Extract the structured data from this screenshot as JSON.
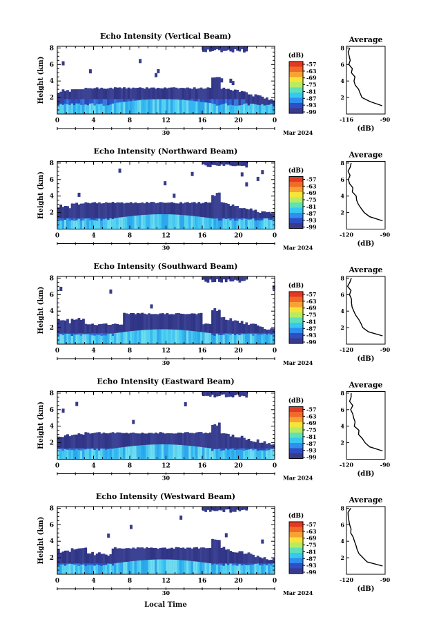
{
  "chart_data": {
    "type": "heatmap",
    "shared": {
      "xlabel": "Local Time",
      "ylabel": "Height (km)",
      "x_ticks": [
        "0",
        "4",
        "8",
        "12",
        "16",
        "20",
        "0"
      ],
      "date_labels": [
        "30",
        "Mar 2024"
      ],
      "y_ticks": [
        "2",
        "4",
        "6",
        "8"
      ],
      "colorbar_unit": "(dB)",
      "colorbar_ticks": [
        "-57",
        "-63",
        "-69",
        "-75",
        "-81",
        "-87",
        "-93",
        "-99"
      ],
      "colorbar_colors": [
        "#3a3a8c",
        "#2e4fc4",
        "#2f8ef0",
        "#37c8f0",
        "#5ee0b8",
        "#b8ec60",
        "#f6e43a",
        "#f8a233",
        "#f06a2a",
        "#e03a22"
      ],
      "avg_title": "Average",
      "avg_xlabel": "(dB)",
      "avg_y_ticks": [
        "2",
        "4",
        "6",
        "8"
      ]
    },
    "panels": [
      {
        "title": "Echo Intensity (Vertical Beam)",
        "avg_x_ticks": [
          "-116",
          "-90"
        ],
        "avg_xlim": [
          -116,
          -90
        ],
        "avg_profile": [
          [
            1,
            -92
          ],
          [
            1.5,
            -100
          ],
          [
            2,
            -105
          ],
          [
            2.5,
            -107
          ],
          [
            3,
            -108
          ],
          [
            3.5,
            -110
          ],
          [
            4,
            -110
          ],
          [
            4.5,
            -111
          ],
          [
            5,
            -113
          ],
          [
            5.5,
            -113
          ],
          [
            6,
            -114
          ],
          [
            6.5,
            -114
          ],
          [
            7,
            -115
          ],
          [
            7.5,
            -115
          ],
          [
            8,
            -114
          ]
        ]
      },
      {
        "title": "Echo Intensity (Northward Beam)",
        "avg_x_ticks": [
          "-120",
          "-90"
        ],
        "avg_xlim": [
          -120,
          -90
        ],
        "avg_profile": [
          [
            1,
            -92
          ],
          [
            1.5,
            -102
          ],
          [
            2,
            -106
          ],
          [
            2.5,
            -108
          ],
          [
            3,
            -110
          ],
          [
            3.5,
            -112
          ],
          [
            4,
            -113
          ],
          [
            4.5,
            -115
          ],
          [
            5,
            -116
          ],
          [
            5.5,
            -117
          ],
          [
            6,
            -118
          ],
          [
            6.5,
            -118
          ],
          [
            7,
            -119
          ],
          [
            7.5,
            -118
          ],
          [
            8,
            -117
          ]
        ]
      },
      {
        "title": "Echo Intensity (Southward Beam)",
        "avg_x_ticks": [
          "-120",
          "-90"
        ],
        "avg_xlim": [
          -120,
          -90
        ],
        "avg_profile": [
          [
            1,
            -92
          ],
          [
            1.5,
            -103
          ],
          [
            2,
            -107
          ],
          [
            2.5,
            -109
          ],
          [
            3,
            -111
          ],
          [
            3.5,
            -112
          ],
          [
            4,
            -114
          ],
          [
            4.5,
            -115
          ],
          [
            5,
            -116
          ],
          [
            5.5,
            -117
          ],
          [
            6,
            -118
          ],
          [
            6.5,
            -117
          ],
          [
            7,
            -119
          ],
          [
            7.5,
            -118
          ],
          [
            8,
            -117
          ]
        ]
      },
      {
        "title": "Echo Intensity (Eastward Beam)",
        "avg_x_ticks": [
          "-120",
          "-90"
        ],
        "avg_xlim": [
          -120,
          -90
        ],
        "avg_profile": [
          [
            1,
            -92
          ],
          [
            1.5,
            -102
          ],
          [
            2,
            -106
          ],
          [
            2.5,
            -108
          ],
          [
            3,
            -110
          ],
          [
            3.5,
            -111
          ],
          [
            4,
            -113
          ],
          [
            4.5,
            -114
          ],
          [
            5,
            -115
          ],
          [
            5.5,
            -116
          ],
          [
            6,
            -117
          ],
          [
            6.5,
            -116
          ],
          [
            7,
            -118
          ],
          [
            7.5,
            -117
          ],
          [
            8,
            -116
          ]
        ]
      },
      {
        "title": "Echo Intensity (Westward Beam)",
        "avg_x_ticks": [
          "-120",
          "-90"
        ],
        "avg_xlim": [
          -120,
          -90
        ],
        "avg_profile": [
          [
            1,
            -92
          ],
          [
            1.5,
            -104
          ],
          [
            2,
            -108
          ],
          [
            2.5,
            -110
          ],
          [
            3,
            -111
          ],
          [
            3.5,
            -112
          ],
          [
            4,
            -114
          ],
          [
            4.5,
            -115
          ],
          [
            5,
            -116
          ],
          [
            5.5,
            -117
          ],
          [
            6,
            -118
          ],
          [
            6.5,
            -118
          ],
          [
            7,
            -119
          ],
          [
            7.5,
            -118
          ],
          [
            8,
            -117
          ]
        ]
      }
    ]
  }
}
